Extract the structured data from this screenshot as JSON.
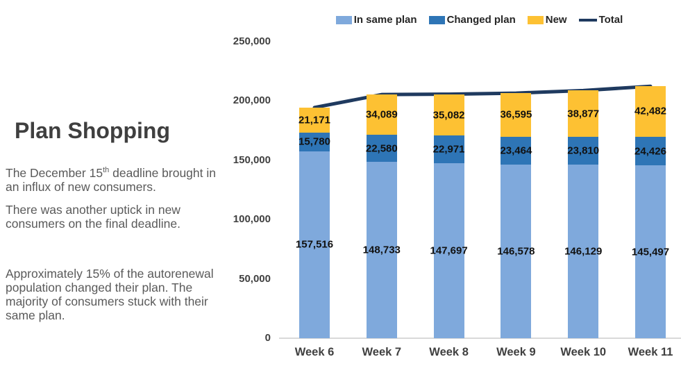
{
  "slide": {
    "title": "Plan Shopping",
    "paragraphs": [
      {
        "parts": [
          {
            "text": "The December 15"
          },
          {
            "text": "th",
            "superscript": true
          },
          {
            "text": " deadline brought in an influx of new consumers."
          }
        ]
      },
      {
        "parts": [
          {
            "text": "There was another uptick in new consumers on the final deadline."
          }
        ]
      },
      {
        "parts": [
          {
            "text": "Approximately 15% of the autorenewal population changed their plan. The majority of consumers stuck with their same plan."
          }
        ]
      }
    ]
  },
  "chart_data": {
    "type": "bar",
    "subtype": "stacked-bar-with-total-line",
    "categories": [
      "Week 6",
      "Week 7",
      "Week 8",
      "Week 9",
      "Week 10",
      "Week 11"
    ],
    "series": [
      {
        "name": "In same plan",
        "color": "#7FA9DC",
        "values": [
          157516,
          148733,
          147697,
          146578,
          146129,
          145497
        ]
      },
      {
        "name": "Changed plan",
        "color": "#2E75B6",
        "values": [
          15780,
          22580,
          22971,
          23464,
          23810,
          24426
        ]
      },
      {
        "name": "New",
        "color": "#FDC133",
        "values": [
          21171,
          34089,
          35082,
          36595,
          38877,
          42482
        ]
      }
    ],
    "line": {
      "name": "Total",
      "color": "#1F3A5F",
      "values": [
        194467,
        205402,
        205750,
        206637,
        208816,
        212405
      ]
    },
    "y_axis": {
      "min": 0,
      "max": 250000,
      "step": 50000,
      "tick_labels": [
        "0",
        "50,000",
        "100,000",
        "150,000",
        "200,000",
        "250,000"
      ]
    },
    "grid": false,
    "legend_position": "top"
  }
}
